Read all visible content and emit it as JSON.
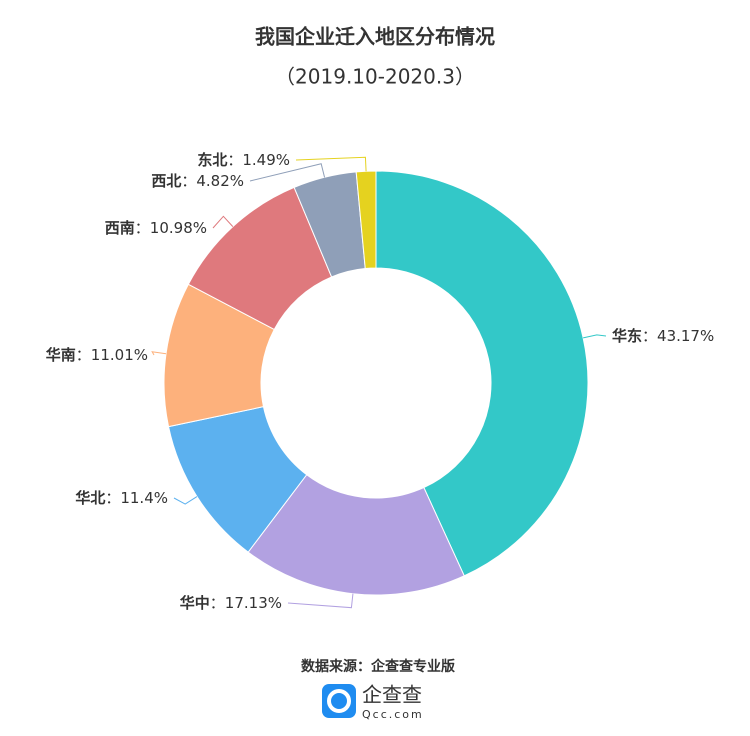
{
  "chart_data": {
    "type": "donut",
    "title": "我国企业迁入地区分布情况",
    "subtitle": "（2019.10-2020.3）",
    "categories": [
      "华东",
      "华中",
      "华北",
      "华南",
      "西南",
      "西北",
      "东北"
    ],
    "values": [
      43.17,
      17.13,
      11.4,
      11.01,
      10.98,
      4.82,
      1.49
    ],
    "value_labels": [
      "43.17%",
      "17.13%",
      "11.4%",
      "11.01%",
      "10.98%",
      "4.82%",
      "1.49%"
    ],
    "label_separator": "：",
    "colors": [
      "#33c8c8",
      "#b2a1e1",
      "#5cb1ef",
      "#fdb17c",
      "#df797d",
      "#8f9fb8",
      "#e5d21f"
    ],
    "source": "数据来源：企查查专业版"
  },
  "footer": {
    "logo_name": "企查查",
    "logo_url": "Qcc.com"
  }
}
